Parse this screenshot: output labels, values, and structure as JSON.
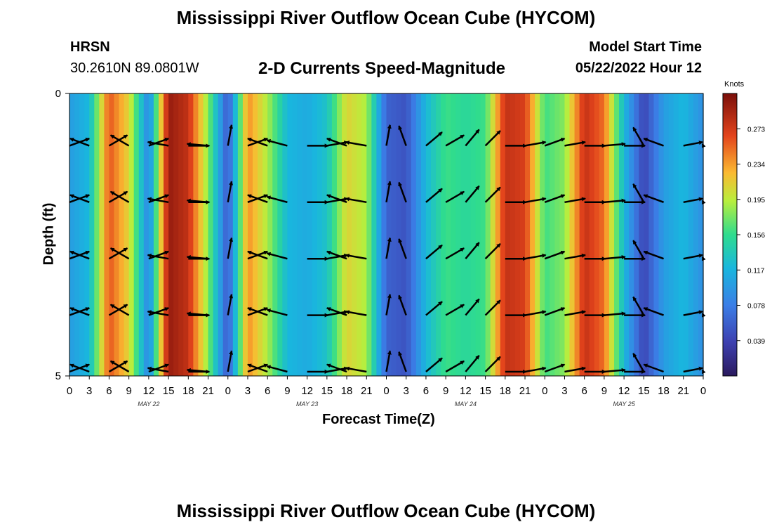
{
  "title": "Mississippi River Outflow Ocean Cube (HYCOM)",
  "title_repeat": "Mississippi River Outflow Ocean Cube (HYCOM)",
  "station": {
    "name": "HRSN",
    "location": "30.2610N  89.0801W"
  },
  "subtitle": "2-D Currents Speed-Magnitude",
  "model_start": {
    "label": "Model Start Time",
    "value": "05/22/2022 Hour 12"
  },
  "chart_data": {
    "type": "heatmap",
    "xlabel": "Forecast Time(Z)",
    "ylabel": "Depth (ft)",
    "x_ticks": [
      "0",
      "3",
      "6",
      "9",
      "12",
      "15",
      "18",
      "21",
      "0",
      "3",
      "6",
      "9",
      "12",
      "15",
      "18",
      "21",
      "0",
      "3",
      "6",
      "9",
      "12",
      "15",
      "18",
      "21",
      "0",
      "3",
      "6",
      "9",
      "12",
      "15",
      "18",
      "21",
      "0"
    ],
    "date_labels": [
      "MAY 22",
      "MAY 23",
      "MAY 24",
      "MAY 25"
    ],
    "y_ticks": [
      "0",
      "5"
    ],
    "ylim": [
      0,
      5
    ],
    "colorbar": {
      "unit": "Knots",
      "ticks": [
        "0.273",
        "0.234",
        "0.195",
        "0.156",
        "0.117",
        "0.078",
        "0.039"
      ],
      "range": [
        0,
        0.312
      ]
    },
    "x_hours": [
      0,
      3,
      6,
      9,
      12,
      15,
      18,
      21,
      24,
      27,
      30,
      33,
      36,
      39,
      42,
      45,
      48,
      51,
      54,
      57,
      60,
      63,
      66,
      69,
      72,
      75,
      78,
      81,
      84,
      87,
      90,
      93,
      96
    ],
    "speed_knots": [
      0.1,
      0.12,
      0.26,
      0.21,
      0.08,
      0.3,
      0.28,
      0.18,
      0.05,
      0.24,
      0.19,
      0.12,
      0.11,
      0.13,
      0.21,
      0.19,
      0.06,
      0.05,
      0.12,
      0.16,
      0.15,
      0.16,
      0.28,
      0.27,
      0.16,
      0.18,
      0.28,
      0.25,
      0.12,
      0.04,
      0.1,
      0.12,
      0.09
    ],
    "vector_depths_ft": [
      1,
      2,
      3,
      4,
      5
    ],
    "vector_directions_deg": [
      -20,
      -160,
      -30,
      -150,
      -20,
      -170,
      0,
      -175,
      -80,
      -20,
      -160,
      -165,
      0,
      -10,
      -160,
      -170,
      -80,
      -110,
      -40,
      -30,
      -50,
      -45,
      0,
      -10,
      -20,
      -10,
      0,
      -5,
      0,
      -120,
      -160,
      -10,
      -5
    ]
  }
}
